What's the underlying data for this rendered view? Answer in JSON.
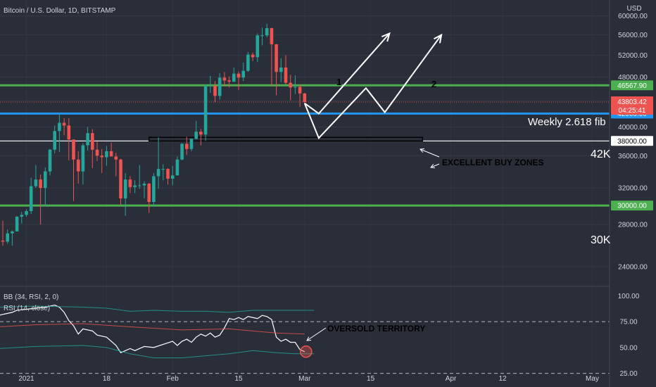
{
  "chart_data": [
    {
      "type": "candlestick",
      "title": "Bitcoin / U.S. Dollar, 1D, BITSTAMP",
      "currency": "USD",
      "y_scale": "log",
      "ylim": [
        22500,
        62000
      ],
      "y_ticks": [
        "60000.00",
        "56000.00",
        "52000.00",
        "48000.00",
        "44000.00",
        "40000.00",
        "36000.00",
        "32000.00",
        "28000.00",
        "24000.00"
      ],
      "x_ticks": [
        "2021",
        "18",
        "Feb",
        "15",
        "Mar",
        "15",
        "Apr",
        "12",
        "May"
      ],
      "candles": [
        {
          "date": "2020-12-26",
          "o": 24800,
          "h": 26800,
          "l": 24600,
          "c": 26400
        },
        {
          "date": "2020-12-27",
          "o": 26400,
          "h": 28400,
          "l": 25900,
          "c": 26300
        },
        {
          "date": "2020-12-28",
          "o": 26300,
          "h": 27500,
          "l": 26100,
          "c": 27100
        },
        {
          "date": "2020-12-29",
          "o": 27100,
          "h": 27400,
          "l": 25900,
          "c": 27300
        },
        {
          "date": "2020-12-30",
          "o": 27300,
          "h": 28900,
          "l": 27300,
          "c": 28800
        },
        {
          "date": "2020-12-31",
          "o": 28800,
          "h": 29300,
          "l": 28100,
          "c": 29000
        },
        {
          "date": "2021-01-01",
          "o": 29000,
          "h": 29600,
          "l": 28800,
          "c": 29400
        },
        {
          "date": "2021-01-02",
          "o": 29400,
          "h": 33200,
          "l": 29100,
          "c": 32200
        },
        {
          "date": "2021-01-03",
          "o": 32200,
          "h": 34800,
          "l": 32000,
          "c": 33000
        },
        {
          "date": "2021-01-04",
          "o": 33000,
          "h": 33600,
          "l": 28000,
          "c": 32000
        },
        {
          "date": "2021-01-05",
          "o": 32000,
          "h": 34500,
          "l": 29900,
          "c": 34000
        },
        {
          "date": "2021-01-06",
          "o": 34000,
          "h": 36900,
          "l": 33500,
          "c": 36800
        },
        {
          "date": "2021-01-07",
          "o": 36800,
          "h": 40200,
          "l": 36300,
          "c": 39400
        },
        {
          "date": "2021-01-08",
          "o": 39400,
          "h": 41900,
          "l": 36500,
          "c": 40600
        },
        {
          "date": "2021-01-09",
          "o": 40600,
          "h": 41300,
          "l": 38800,
          "c": 40200
        },
        {
          "date": "2021-01-10",
          "o": 40200,
          "h": 41300,
          "l": 35400,
          "c": 38200
        },
        {
          "date": "2021-01-11",
          "o": 38200,
          "h": 38200,
          "l": 30500,
          "c": 35500
        },
        {
          "date": "2021-01-12",
          "o": 35500,
          "h": 36600,
          "l": 32500,
          "c": 34000
        },
        {
          "date": "2021-01-13",
          "o": 34000,
          "h": 37700,
          "l": 32400,
          "c": 37400
        },
        {
          "date": "2021-01-14",
          "o": 37400,
          "h": 40000,
          "l": 36700,
          "c": 39100
        },
        {
          "date": "2021-01-15",
          "o": 39100,
          "h": 39700,
          "l": 34400,
          "c": 36800
        },
        {
          "date": "2021-01-16",
          "o": 36800,
          "h": 37900,
          "l": 35300,
          "c": 36000
        },
        {
          "date": "2021-01-17",
          "o": 36000,
          "h": 36900,
          "l": 33800,
          "c": 35800
        },
        {
          "date": "2021-01-18",
          "o": 35800,
          "h": 37300,
          "l": 34700,
          "c": 36600
        },
        {
          "date": "2021-01-19",
          "o": 36600,
          "h": 37800,
          "l": 35900,
          "c": 35900
        },
        {
          "date": "2021-01-20",
          "o": 35900,
          "h": 36400,
          "l": 33400,
          "c": 35500
        },
        {
          "date": "2021-01-21",
          "o": 35500,
          "h": 35600,
          "l": 30100,
          "c": 30800
        },
        {
          "date": "2021-01-22",
          "o": 30800,
          "h": 33800,
          "l": 28900,
          "c": 33000
        },
        {
          "date": "2021-01-23",
          "o": 33000,
          "h": 33400,
          "l": 31400,
          "c": 32100
        },
        {
          "date": "2021-01-24",
          "o": 32100,
          "h": 32900,
          "l": 31400,
          "c": 32300
        },
        {
          "date": "2021-01-25",
          "o": 32300,
          "h": 34800,
          "l": 31900,
          "c": 32300
        },
        {
          "date": "2021-01-26",
          "o": 32300,
          "h": 32800,
          "l": 30800,
          "c": 32500
        },
        {
          "date": "2021-01-27",
          "o": 32500,
          "h": 32600,
          "l": 29200,
          "c": 30400
        },
        {
          "date": "2021-01-28",
          "o": 30400,
          "h": 33800,
          "l": 29900,
          "c": 33400
        },
        {
          "date": "2021-01-29",
          "o": 33400,
          "h": 38500,
          "l": 31900,
          "c": 34300
        },
        {
          "date": "2021-01-30",
          "o": 34300,
          "h": 34900,
          "l": 32900,
          "c": 34300
        },
        {
          "date": "2021-01-31",
          "o": 34300,
          "h": 34400,
          "l": 32400,
          "c": 33100
        },
        {
          "date": "2021-02-01",
          "o": 33100,
          "h": 34700,
          "l": 32300,
          "c": 33500
        },
        {
          "date": "2021-02-02",
          "o": 33500,
          "h": 35900,
          "l": 33500,
          "c": 35500
        },
        {
          "date": "2021-02-03",
          "o": 35500,
          "h": 37700,
          "l": 35400,
          "c": 37600
        },
        {
          "date": "2021-02-04",
          "o": 37600,
          "h": 38600,
          "l": 36100,
          "c": 36900
        },
        {
          "date": "2021-02-05",
          "o": 36900,
          "h": 38300,
          "l": 36600,
          "c": 38300
        },
        {
          "date": "2021-02-06",
          "o": 38300,
          "h": 40900,
          "l": 38200,
          "c": 39300
        },
        {
          "date": "2021-02-07",
          "o": 39300,
          "h": 39700,
          "l": 37400,
          "c": 38900
        },
        {
          "date": "2021-02-08",
          "o": 38900,
          "h": 46700,
          "l": 38000,
          "c": 46400
        },
        {
          "date": "2021-02-09",
          "o": 46400,
          "h": 48200,
          "l": 45300,
          "c": 46500
        },
        {
          "date": "2021-02-10",
          "o": 46500,
          "h": 47300,
          "l": 43800,
          "c": 44800
        },
        {
          "date": "2021-02-11",
          "o": 44800,
          "h": 48700,
          "l": 44200,
          "c": 47900
        },
        {
          "date": "2021-02-12",
          "o": 47900,
          "h": 48900,
          "l": 46400,
          "c": 47400
        },
        {
          "date": "2021-02-13",
          "o": 47400,
          "h": 48100,
          "l": 46200,
          "c": 47200
        },
        {
          "date": "2021-02-14",
          "o": 47200,
          "h": 49700,
          "l": 47100,
          "c": 48600
        },
        {
          "date": "2021-02-15",
          "o": 48600,
          "h": 49000,
          "l": 45800,
          "c": 47900
        },
        {
          "date": "2021-02-16",
          "o": 47900,
          "h": 50600,
          "l": 47300,
          "c": 49100
        },
        {
          "date": "2021-02-17",
          "o": 49100,
          "h": 52600,
          "l": 48900,
          "c": 52100
        },
        {
          "date": "2021-02-18",
          "o": 52100,
          "h": 52500,
          "l": 50900,
          "c": 51600
        },
        {
          "date": "2021-02-19",
          "o": 51600,
          "h": 56300,
          "l": 50700,
          "c": 55900
        },
        {
          "date": "2021-02-20",
          "o": 55900,
          "h": 57500,
          "l": 53900,
          "c": 55900
        },
        {
          "date": "2021-02-21",
          "o": 55900,
          "h": 58300,
          "l": 55500,
          "c": 57400
        },
        {
          "date": "2021-02-22",
          "o": 57400,
          "h": 57500,
          "l": 46400,
          "c": 54100
        },
        {
          "date": "2021-02-23",
          "o": 54100,
          "h": 54200,
          "l": 44900,
          "c": 48900
        },
        {
          "date": "2021-02-24",
          "o": 48900,
          "h": 51400,
          "l": 47100,
          "c": 49700
        },
        {
          "date": "2021-02-25",
          "o": 49700,
          "h": 52000,
          "l": 46700,
          "c": 47000
        },
        {
          "date": "2021-02-26",
          "o": 47000,
          "h": 48400,
          "l": 44100,
          "c": 46200
        },
        {
          "date": "2021-02-27",
          "o": 46200,
          "h": 48300,
          "l": 45100,
          "c": 46300
        },
        {
          "date": "2021-02-28",
          "o": 46300,
          "h": 46700,
          "l": 43000,
          "c": 45200
        },
        {
          "date": "2021-03-01",
          "o": 45200,
          "h": 45300,
          "l": 43600,
          "c": 43803
        }
      ],
      "horizontal_levels": [
        {
          "price": 46567.9,
          "label": "46567.90",
          "color": "#4caf50"
        },
        {
          "price": 42000.0,
          "label": "42000.00",
          "color": "#2196f3"
        },
        {
          "price": 38000.0,
          "label": "38000.00",
          "color": "#ffffff"
        },
        {
          "price": 30000.0,
          "label": "30000.00",
          "color": "#4caf50"
        }
      ],
      "current_price": {
        "label": "43803.42",
        "countdown": "04:25:41",
        "color": "#ef5350"
      },
      "annotations": {
        "fib": "Weekly 2.618 fib",
        "k42": "42K",
        "k30": "30K",
        "buy_zones": "EXCELLENT BUY ZONES",
        "path1": "1",
        "path2": "2"
      },
      "scenario_paths": [
        {
          "name": "1",
          "points": [
            [
              "2021-03-01",
              43600
            ],
            [
              "2021-03-04",
              42000
            ],
            [
              "2021-03-19",
              56300
            ]
          ]
        },
        {
          "name": "2",
          "points": [
            [
              "2021-03-01",
              43600
            ],
            [
              "2021-03-04",
              38400
            ],
            [
              "2021-03-14",
              46100
            ],
            [
              "2021-03-18",
              42200
            ],
            [
              "2021-03-30",
              56000
            ]
          ]
        }
      ],
      "colors": {
        "up": "#26a69a",
        "down": "#ef5350",
        "background": "#2a2e39"
      }
    },
    {
      "type": "line",
      "indicator_labels": [
        "BB (34, RSI, 2, 0)",
        "RSI (14, close)"
      ],
      "ylim": [
        20,
        105
      ],
      "y_ticks": [
        "100.00",
        "75.00",
        "50.00",
        "25.00"
      ],
      "dashed_levels": [
        75,
        25
      ],
      "oversold": "OVERSOLD TERRITORY",
      "series": [
        {
          "color": "#ffffff",
          "values": [
            [
              "2020-12-26",
              81
            ],
            [
              "2020-12-27",
              82
            ],
            [
              "2020-12-28",
              83
            ],
            [
              "2020-12-29",
              84
            ],
            [
              "2020-12-30",
              86
            ],
            [
              "2021-01-01",
              87
            ],
            [
              "2021-01-03",
              88
            ],
            [
              "2021-01-05",
              89
            ],
            [
              "2021-01-07",
              91
            ],
            [
              "2021-01-08",
              89
            ],
            [
              "2021-01-09",
              84
            ],
            [
              "2021-01-10",
              76
            ],
            [
              "2021-01-11",
              71
            ],
            [
              "2021-01-12",
              63
            ],
            [
              "2021-01-13",
              68
            ],
            [
              "2021-01-15",
              66
            ],
            [
              "2021-01-16",
              62
            ],
            [
              "2021-01-18",
              60
            ],
            [
              "2021-01-19",
              56
            ],
            [
              "2021-01-20",
              52
            ],
            [
              "2021-01-21",
              45
            ],
            [
              "2021-01-23",
              49
            ],
            [
              "2021-01-24",
              47
            ],
            [
              "2021-01-25",
              49
            ],
            [
              "2021-01-26",
              51
            ],
            [
              "2021-01-28",
              50
            ],
            [
              "2021-01-30",
              53
            ],
            [
              "2021-02-01",
              56
            ],
            [
              "2021-02-02",
              52
            ],
            [
              "2021-02-03",
              56
            ],
            [
              "2021-02-04",
              58
            ],
            [
              "2021-02-05",
              55
            ],
            [
              "2021-02-06",
              60
            ],
            [
              "2021-02-07",
              63
            ],
            [
              "2021-02-08",
              61
            ],
            [
              "2021-02-09",
              64
            ],
            [
              "2021-02-10",
              60
            ],
            [
              "2021-02-11",
              62
            ],
            [
              "2021-02-12",
              69
            ],
            [
              "2021-02-13",
              78
            ],
            [
              "2021-02-14",
              77
            ],
            [
              "2021-02-15",
              79
            ],
            [
              "2021-02-16",
              77
            ],
            [
              "2021-02-17",
              80
            ],
            [
              "2021-02-18",
              79
            ],
            [
              "2021-02-19",
              78
            ],
            [
              "2021-02-20",
              81
            ],
            [
              "2021-02-21",
              80
            ],
            [
              "2021-02-22",
              77
            ],
            [
              "2021-02-23",
              60
            ],
            [
              "2021-02-24",
              56
            ],
            [
              "2021-02-25",
              58
            ],
            [
              "2021-02-26",
              55
            ],
            [
              "2021-02-27",
              55
            ],
            [
              "2021-02-28",
              48
            ],
            [
              "2021-03-01",
              46
            ]
          ]
        },
        {
          "color": "#ef5350",
          "values": [
            [
              "2020-12-26",
              70
            ],
            [
              "2021-01-03",
              72
            ],
            [
              "2021-01-13",
              73
            ],
            [
              "2021-01-23",
              70
            ],
            [
              "2021-02-03",
              67
            ],
            [
              "2021-02-13",
              68
            ],
            [
              "2021-02-23",
              64
            ],
            [
              "2021-03-01",
              63
            ]
          ]
        },
        {
          "color": "#26a69a",
          "values": [
            [
              "2020-12-26",
              89
            ],
            [
              "2021-01-03",
              90
            ],
            [
              "2021-01-13",
              89
            ],
            [
              "2021-01-18",
              88
            ],
            [
              "2021-01-23",
              85
            ],
            [
              "2021-01-28",
              86
            ],
            [
              "2021-02-03",
              85
            ],
            [
              "2021-02-08",
              85
            ],
            [
              "2021-02-13",
              84
            ],
            [
              "2021-02-18",
              86
            ],
            [
              "2021-02-23",
              86
            ],
            [
              "2021-03-03",
              86
            ]
          ]
        },
        {
          "color": "#26a69a",
          "values": [
            [
              "2020-12-26",
              49
            ],
            [
              "2021-01-03",
              51
            ],
            [
              "2021-01-13",
              52
            ],
            [
              "2021-01-18",
              50
            ],
            [
              "2021-01-23",
              44
            ],
            [
              "2021-01-28",
              40
            ],
            [
              "2021-02-03",
              40
            ],
            [
              "2021-02-08",
              42
            ],
            [
              "2021-02-13",
              44
            ],
            [
              "2021-02-18",
              47
            ],
            [
              "2021-02-23",
              45
            ],
            [
              "2021-02-27",
              44
            ],
            [
              "2021-03-03",
              44
            ]
          ]
        }
      ]
    }
  ]
}
